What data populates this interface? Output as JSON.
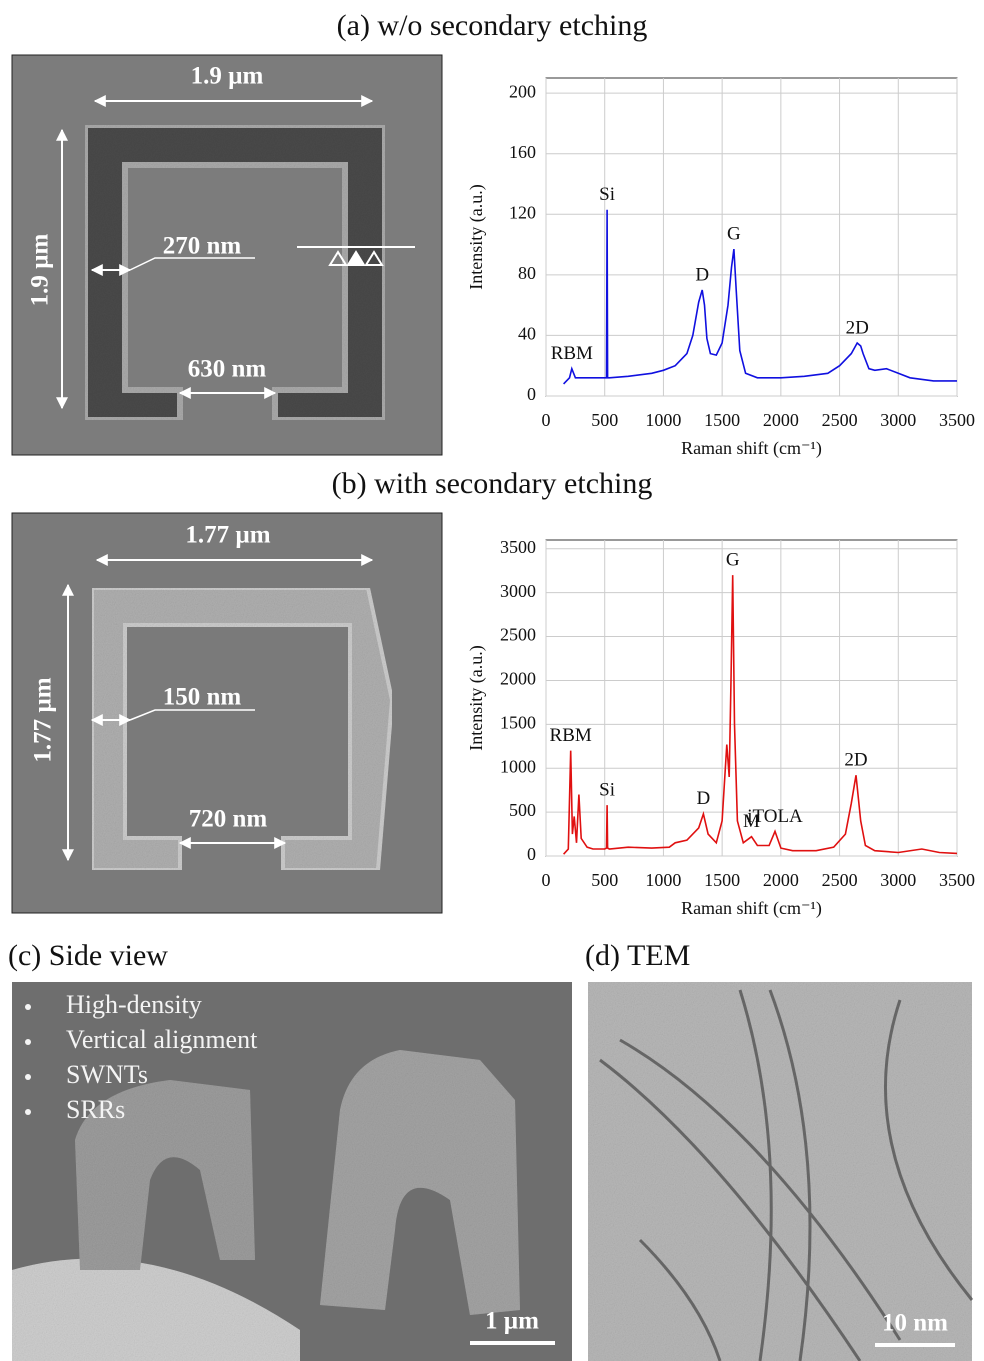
{
  "figure": {
    "panel_a": {
      "title": "(a) w/o secondary etching",
      "width_label": "1.9 µm",
      "height_label": "1.9 µm",
      "line_width_label": "270 nm",
      "gap_label": "630 nm"
    },
    "panel_b": {
      "title": "(b) with secondary etching",
      "width_label": "1.77 µm",
      "height_label": "1.77 µm",
      "line_width_label": "150 nm",
      "gap_label": "720 nm"
    },
    "panel_c": {
      "title": "(c) Side view",
      "bullets": [
        "High-density",
        "Vertical alignment",
        "SWNTs",
        "SRRs"
      ],
      "scale_bar": "1 µm"
    },
    "panel_d": {
      "title": "(d) TEM",
      "scale_bar": "10 nm"
    }
  },
  "chart_data": [
    {
      "type": "line",
      "x_label": "Raman shift (cm⁻¹)",
      "y_label": "Intensity (a.u.)",
      "x": [
        150,
        200,
        220,
        250,
        300,
        400,
        500,
        515,
        520,
        525,
        540,
        700,
        900,
        1000,
        1100,
        1200,
        1250,
        1300,
        1330,
        1350,
        1370,
        1400,
        1450,
        1500,
        1550,
        1580,
        1600,
        1620,
        1650,
        1700,
        1800,
        2000,
        2200,
        2400,
        2500,
        2600,
        2650,
        2680,
        2700,
        2750,
        2800,
        2900,
        3000,
        3100,
        3300,
        3500
      ],
      "series": [
        {
          "color": "#1010e0",
          "values": [
            8,
            12,
            18,
            12,
            12,
            12,
            12,
            12,
            123,
            12,
            12,
            13,
            15,
            17,
            20,
            28,
            40,
            62,
            70,
            60,
            38,
            28,
            27,
            35,
            60,
            85,
            97,
            70,
            30,
            15,
            12,
            12,
            13,
            15,
            20,
            28,
            35,
            33,
            28,
            18,
            17,
            18,
            15,
            12,
            10,
            10
          ]
        }
      ],
      "annotations": [
        {
          "text": "RBM",
          "x": 220
        },
        {
          "text": "Si",
          "x": 520
        },
        {
          "text": "D",
          "x": 1330
        },
        {
          "text": "G",
          "x": 1600
        },
        {
          "text": "2D",
          "x": 2650
        }
      ],
      "xlim": [
        0,
        3500
      ],
      "xticks": [
        0,
        500,
        1000,
        1500,
        2000,
        2500,
        3000,
        3500
      ],
      "ylim": [
        0,
        210
      ],
      "yticks": [
        0,
        40,
        80,
        120,
        160,
        200
      ],
      "grid": true
    },
    {
      "type": "line",
      "x_label": "Raman shift (cm⁻¹)",
      "y_label": "Intensity (a.u.)",
      "x": [
        150,
        190,
        210,
        225,
        240,
        260,
        280,
        300,
        350,
        400,
        500,
        515,
        520,
        525,
        540,
        700,
        900,
        1050,
        1100,
        1200,
        1300,
        1340,
        1380,
        1450,
        1500,
        1540,
        1560,
        1575,
        1590,
        1605,
        1630,
        1680,
        1750,
        1800,
        1900,
        1950,
        2000,
        2100,
        2300,
        2450,
        2550,
        2600,
        2640,
        2680,
        2720,
        2800,
        3000,
        3200,
        3350,
        3500
      ],
      "series": [
        {
          "color": "#e01010",
          "values": [
            20,
            80,
            1200,
            250,
            450,
            150,
            700,
            200,
            100,
            80,
            80,
            90,
            580,
            90,
            80,
            100,
            90,
            100,
            150,
            180,
            320,
            480,
            250,
            150,
            400,
            1270,
            900,
            2000,
            3200,
            1500,
            400,
            150,
            220,
            120,
            120,
            280,
            90,
            60,
            60,
            100,
            250,
            600,
            920,
            400,
            120,
            60,
            40,
            80,
            40,
            30
          ]
        }
      ],
      "annotations": [
        {
          "text": "RBM",
          "x": 210
        },
        {
          "text": "Si",
          "x": 520
        },
        {
          "text": "D",
          "x": 1340
        },
        {
          "text": "G",
          "x": 1590
        },
        {
          "text": "M",
          "x": 1750
        },
        {
          "text": "iTOLA",
          "x": 1950
        },
        {
          "text": "2D",
          "x": 2640
        }
      ],
      "xlim": [
        0,
        3500
      ],
      "xticks": [
        0,
        500,
        1000,
        1500,
        2000,
        2500,
        3000,
        3500
      ],
      "ylim": [
        0,
        3600
      ],
      "yticks": [
        0,
        500,
        1000,
        1500,
        2000,
        2500,
        3000,
        3500
      ],
      "grid": true
    }
  ]
}
